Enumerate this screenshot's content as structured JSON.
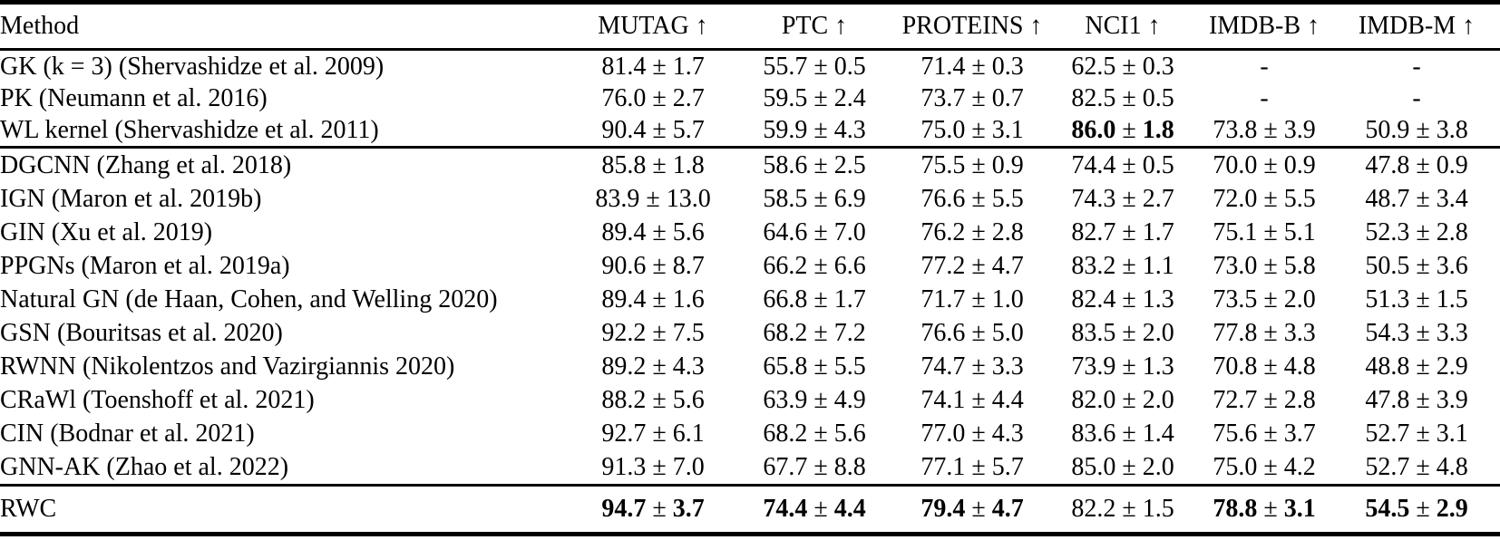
{
  "page": {
    "background": "#ffffff",
    "text_color": "#000000",
    "rule_color": "#000000"
  },
  "table": {
    "pm_symbol": "±",
    "header": {
      "method": "Method",
      "metrics": [
        {
          "name": "MUTAG",
          "arrow": "↑"
        },
        {
          "name": "PTC",
          "arrow": "↑"
        },
        {
          "name": "PROTEINS",
          "arrow": "↑"
        },
        {
          "name": "NCI1",
          "arrow": "↑"
        },
        {
          "name": "IMDB-B",
          "arrow": "↑"
        },
        {
          "name": "IMDB-M",
          "arrow": "↑"
        }
      ]
    },
    "groups": [
      {
        "name": "kernel-baselines",
        "rows": [
          {
            "method": "GK (k = 3) (Shervashidze et al. 2009)",
            "cells": [
              {
                "mean": "81.4",
                "std": "1.7",
                "bold": false
              },
              {
                "mean": "55.7",
                "std": "0.5",
                "bold": false
              },
              {
                "mean": "71.4",
                "std": "0.3",
                "bold": false
              },
              {
                "mean": "62.5",
                "std": "0.3",
                "bold": false
              },
              {
                "mean": "-",
                "std": null,
                "bold": false
              },
              {
                "mean": "-",
                "std": null,
                "bold": false
              }
            ]
          },
          {
            "method": "PK (Neumann et al. 2016)",
            "cells": [
              {
                "mean": "76.0",
                "std": "2.7",
                "bold": false
              },
              {
                "mean": "59.5",
                "std": "2.4",
                "bold": false
              },
              {
                "mean": "73.7",
                "std": "0.7",
                "bold": false
              },
              {
                "mean": "82.5",
                "std": "0.5",
                "bold": false
              },
              {
                "mean": "-",
                "std": null,
                "bold": false
              },
              {
                "mean": "-",
                "std": null,
                "bold": false
              }
            ]
          },
          {
            "method": "WL kernel (Shervashidze et al. 2011)",
            "cells": [
              {
                "mean": "90.4",
                "std": "5.7",
                "bold": false
              },
              {
                "mean": "59.9",
                "std": "4.3",
                "bold": false
              },
              {
                "mean": "75.0",
                "std": "3.1",
                "bold": false
              },
              {
                "mean": "86.0",
                "std": "1.8",
                "bold": true
              },
              {
                "mean": "73.8",
                "std": "3.9",
                "bold": false
              },
              {
                "mean": "50.9",
                "std": "3.8",
                "bold": false
              }
            ]
          }
        ]
      },
      {
        "name": "gnn-baselines",
        "rows": [
          {
            "method": "DGCNN (Zhang et al. 2018)",
            "cells": [
              {
                "mean": "85.8",
                "std": "1.8",
                "bold": false
              },
              {
                "mean": "58.6",
                "std": "2.5",
                "bold": false
              },
              {
                "mean": "75.5",
                "std": "0.9",
                "bold": false
              },
              {
                "mean": "74.4",
                "std": "0.5",
                "bold": false
              },
              {
                "mean": "70.0",
                "std": "0.9",
                "bold": false
              },
              {
                "mean": "47.8",
                "std": "0.9",
                "bold": false
              }
            ]
          },
          {
            "method": "IGN (Maron et al. 2019b)",
            "cells": [
              {
                "mean": "83.9",
                "std": "13.0",
                "bold": false
              },
              {
                "mean": "58.5",
                "std": "6.9",
                "bold": false
              },
              {
                "mean": "76.6",
                "std": "5.5",
                "bold": false
              },
              {
                "mean": "74.3",
                "std": "2.7",
                "bold": false
              },
              {
                "mean": "72.0",
                "std": "5.5",
                "bold": false
              },
              {
                "mean": "48.7",
                "std": "3.4",
                "bold": false
              }
            ]
          },
          {
            "method": "GIN (Xu et al. 2019)",
            "cells": [
              {
                "mean": "89.4",
                "std": "5.6",
                "bold": false
              },
              {
                "mean": "64.6",
                "std": "7.0",
                "bold": false
              },
              {
                "mean": "76.2",
                "std": "2.8",
                "bold": false
              },
              {
                "mean": "82.7",
                "std": "1.7",
                "bold": false
              },
              {
                "mean": "75.1",
                "std": "5.1",
                "bold": false
              },
              {
                "mean": "52.3",
                "std": "2.8",
                "bold": false
              }
            ]
          },
          {
            "method": "PPGNs (Maron et al. 2019a)",
            "cells": [
              {
                "mean": "90.6",
                "std": "8.7",
                "bold": false
              },
              {
                "mean": "66.2",
                "std": "6.6",
                "bold": false
              },
              {
                "mean": "77.2",
                "std": "4.7",
                "bold": false
              },
              {
                "mean": "83.2",
                "std": "1.1",
                "bold": false
              },
              {
                "mean": "73.0",
                "std": "5.8",
                "bold": false
              },
              {
                "mean": "50.5",
                "std": "3.6",
                "bold": false
              }
            ]
          },
          {
            "method": "Natural GN (de Haan, Cohen, and Welling 2020)",
            "cells": [
              {
                "mean": "89.4",
                "std": "1.6",
                "bold": false
              },
              {
                "mean": "66.8",
                "std": "1.7",
                "bold": false
              },
              {
                "mean": "71.7",
                "std": "1.0",
                "bold": false
              },
              {
                "mean": "82.4",
                "std": "1.3",
                "bold": false
              },
              {
                "mean": "73.5",
                "std": "2.0",
                "bold": false
              },
              {
                "mean": "51.3",
                "std": "1.5",
                "bold": false
              }
            ]
          },
          {
            "method": "GSN (Bouritsas et al. 2020)",
            "cells": [
              {
                "mean": "92.2",
                "std": "7.5",
                "bold": false
              },
              {
                "mean": "68.2",
                "std": "7.2",
                "bold": false
              },
              {
                "mean": "76.6",
                "std": "5.0",
                "bold": false
              },
              {
                "mean": "83.5",
                "std": "2.0",
                "bold": false
              },
              {
                "mean": "77.8",
                "std": "3.3",
                "bold": false
              },
              {
                "mean": "54.3",
                "std": "3.3",
                "bold": false
              }
            ]
          },
          {
            "method": "RWNN (Nikolentzos and Vazirgiannis 2020)",
            "cells": [
              {
                "mean": "89.2",
                "std": "4.3",
                "bold": false
              },
              {
                "mean": "65.8",
                "std": "5.5",
                "bold": false
              },
              {
                "mean": "74.7",
                "std": "3.3",
                "bold": false
              },
              {
                "mean": "73.9",
                "std": "1.3",
                "bold": false
              },
              {
                "mean": "70.8",
                "std": "4.8",
                "bold": false
              },
              {
                "mean": "48.8",
                "std": "2.9",
                "bold": false
              }
            ]
          },
          {
            "method": "CRaWl (Toenshoff et al. 2021)",
            "cells": [
              {
                "mean": "88.2",
                "std": "5.6",
                "bold": false
              },
              {
                "mean": "63.9",
                "std": "4.9",
                "bold": false
              },
              {
                "mean": "74.1",
                "std": "4.4",
                "bold": false
              },
              {
                "mean": "82.0",
                "std": "2.0",
                "bold": false
              },
              {
                "mean": "72.7",
                "std": "2.8",
                "bold": false
              },
              {
                "mean": "47.8",
                "std": "3.9",
                "bold": false
              }
            ]
          },
          {
            "method": "CIN (Bodnar et al. 2021)",
            "cells": [
              {
                "mean": "92.7",
                "std": "6.1",
                "bold": false
              },
              {
                "mean": "68.2",
                "std": "5.6",
                "bold": false
              },
              {
                "mean": "77.0",
                "std": "4.3",
                "bold": false
              },
              {
                "mean": "83.6",
                "std": "1.4",
                "bold": false
              },
              {
                "mean": "75.6",
                "std": "3.7",
                "bold": false
              },
              {
                "mean": "52.7",
                "std": "3.1",
                "bold": false
              }
            ]
          },
          {
            "method": "GNN-AK (Zhao et al. 2022)",
            "cells": [
              {
                "mean": "91.3",
                "std": "7.0",
                "bold": false
              },
              {
                "mean": "67.7",
                "std": "8.8",
                "bold": false
              },
              {
                "mean": "77.1",
                "std": "5.7",
                "bold": false
              },
              {
                "mean": "85.0",
                "std": "2.0",
                "bold": false
              },
              {
                "mean": "75.0",
                "std": "4.2",
                "bold": false
              },
              {
                "mean": "52.7",
                "std": "4.8",
                "bold": false
              }
            ]
          }
        ]
      },
      {
        "name": "proposed-method",
        "rows": [
          {
            "method": "RWC",
            "cells": [
              {
                "mean": "94.7",
                "std": "3.7",
                "bold": true
              },
              {
                "mean": "74.4",
                "std": "4.4",
                "bold": true
              },
              {
                "mean": "79.4",
                "std": "4.7",
                "bold": true
              },
              {
                "mean": "82.2",
                "std": "1.5",
                "bold": false
              },
              {
                "mean": "78.8",
                "std": "3.1",
                "bold": true
              },
              {
                "mean": "54.5",
                "std": "2.9",
                "bold": true
              }
            ]
          }
        ]
      }
    ]
  }
}
